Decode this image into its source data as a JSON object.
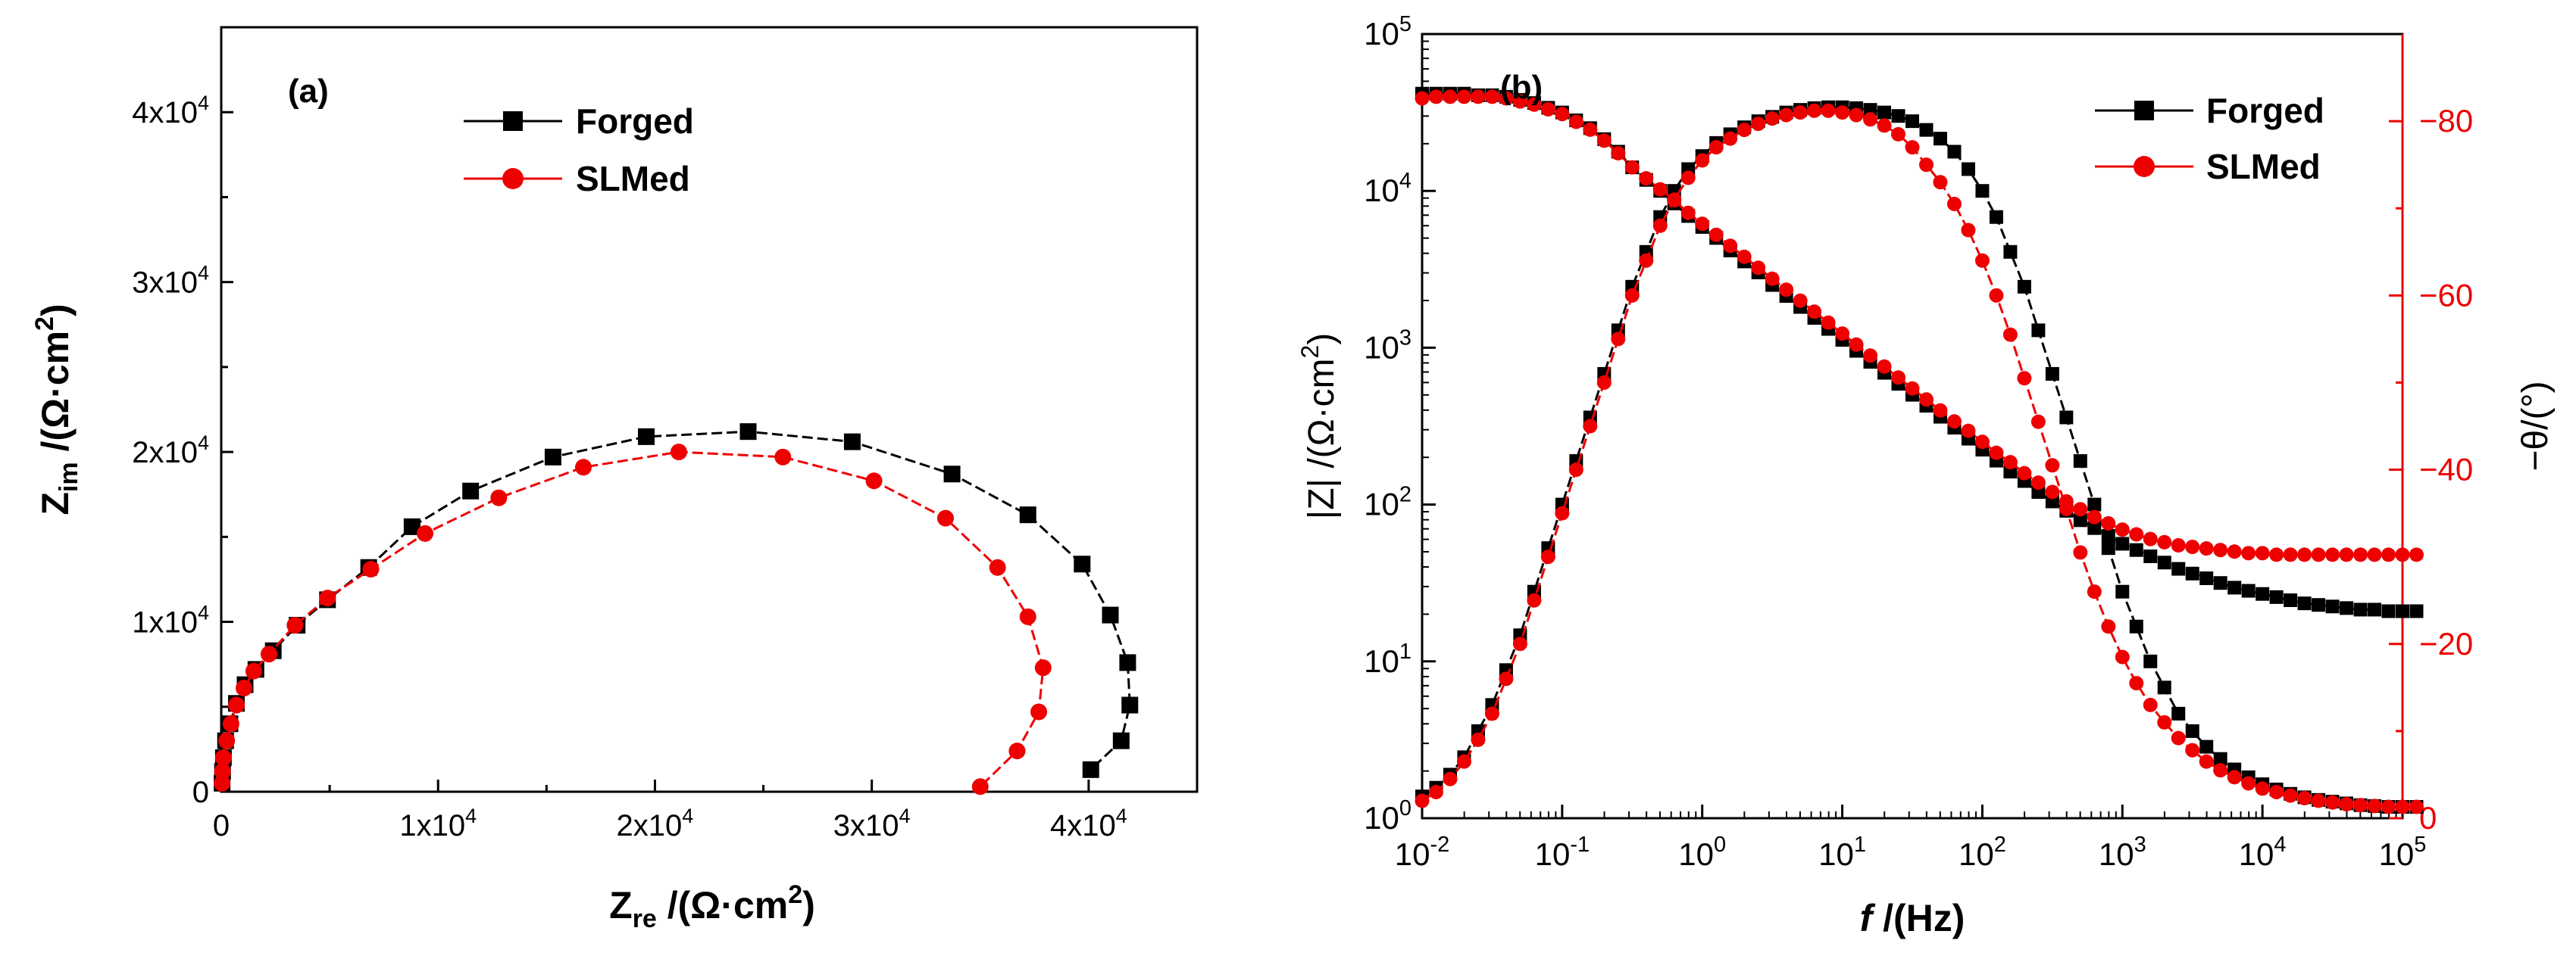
{
  "chart_data": [
    {
      "type": "scatter",
      "panel_label": "(a)",
      "title": "",
      "xlabel": {
        "main": "Z",
        "sub": "re",
        "unit": " /(Ω·cm",
        "sup": "2",
        "close": ")"
      },
      "ylabel": {
        "main": "Z",
        "sub": "im",
        "unit": " /(Ω·cm",
        "sup": "2",
        "close": ")"
      },
      "xlim": [
        0,
        45000
      ],
      "ylim": [
        0,
        45000
      ],
      "x_ticks": [
        {
          "value": 0,
          "label": "0"
        },
        {
          "value": 10000,
          "base": "1x10",
          "exp": "4"
        },
        {
          "value": 20000,
          "base": "2x10",
          "exp": "4"
        },
        {
          "value": 30000,
          "base": "3x10",
          "exp": "4"
        },
        {
          "value": 40000,
          "base": "4x10",
          "exp": "4"
        }
      ],
      "y_ticks": [
        {
          "value": 0,
          "label": "0"
        },
        {
          "value": 10000,
          "base": "1x10",
          "exp": "4"
        },
        {
          "value": 20000,
          "base": "2x10",
          "exp": "4"
        },
        {
          "value": 30000,
          "base": "3x10",
          "exp": "4"
        },
        {
          "value": 40000,
          "base": "4x10",
          "exp": "4"
        }
      ],
      "legend": {
        "position": "top-center",
        "entries": [
          "Forged",
          "SLMed"
        ]
      },
      "series": [
        {
          "name": "Forged",
          "color": "#000000",
          "marker": "square",
          "points": [
            [
              40,
              500
            ],
            [
              60,
              1200
            ],
            [
              100,
              2000
            ],
            [
              200,
              3000
            ],
            [
              400,
              4000
            ],
            [
              700,
              5200
            ],
            [
              1100,
              6300
            ],
            [
              1600,
              7200
            ],
            [
              2400,
              8300
            ],
            [
              3500,
              9800
            ],
            [
              4900,
              11300
            ],
            [
              6800,
              13200
            ],
            [
              8800,
              15600
            ],
            [
              11500,
              17700
            ],
            [
              15300,
              19700
            ],
            [
              19600,
              20900
            ],
            [
              24300,
              21200
            ],
            [
              29100,
              20600
            ],
            [
              33700,
              18700
            ],
            [
              37200,
              16300
            ],
            [
              39700,
              13400
            ],
            [
              41000,
              10400
            ],
            [
              41800,
              7600
            ],
            [
              41900,
              5100
            ],
            [
              41500,
              3000
            ],
            [
              40100,
              1300
            ]
          ]
        },
        {
          "name": "SLMed",
          "color": "#ee0000",
          "marker": "circle",
          "points": [
            [
              40,
              500
            ],
            [
              60,
              1200
            ],
            [
              100,
              2000
            ],
            [
              250,
              3000
            ],
            [
              450,
              4000
            ],
            [
              700,
              5100
            ],
            [
              1050,
              6100
            ],
            [
              1500,
              7100
            ],
            [
              2200,
              8100
            ],
            [
              3400,
              9800
            ],
            [
              4900,
              11400
            ],
            [
              6900,
              13100
            ],
            [
              9400,
              15200
            ],
            [
              12800,
              17300
            ],
            [
              16700,
              19100
            ],
            [
              21100,
              20000
            ],
            [
              25900,
              19700
            ],
            [
              30100,
              18300
            ],
            [
              33400,
              16100
            ],
            [
              35800,
              13200
            ],
            [
              37200,
              10300
            ],
            [
              37900,
              7300
            ],
            [
              37700,
              4700
            ],
            [
              36700,
              2400
            ],
            [
              35000,
              300
            ]
          ]
        }
      ]
    },
    {
      "type": "line",
      "panel_label": "(b)",
      "title": "",
      "xlabel": {
        "italic": "f",
        "rest": " /(Hz)"
      },
      "ylabel": {
        "main": "|Z| /(Ω·cm",
        "sup": "2",
        "close": ")"
      },
      "y2label": "−θ/(°)",
      "xscale": "log",
      "yscale": "log",
      "xlim_log10": [
        -2,
        5
      ],
      "ylim_log10": [
        0,
        5
      ],
      "y2lim": [
        0,
        -90
      ],
      "x_ticks": [
        {
          "exp": -2,
          "base": "10",
          "sup": "-2"
        },
        {
          "exp": -1,
          "base": "10",
          "sup": "-1"
        },
        {
          "exp": 0,
          "base": "10",
          "sup": "0"
        },
        {
          "exp": 1,
          "base": "10",
          "sup": "1"
        },
        {
          "exp": 2,
          "base": "10",
          "sup": "2"
        },
        {
          "exp": 3,
          "base": "10",
          "sup": "3"
        },
        {
          "exp": 4,
          "base": "10",
          "sup": "4"
        },
        {
          "exp": 5,
          "base": "10",
          "sup": "5"
        }
      ],
      "y_ticks": [
        {
          "exp": 0,
          "base": "10",
          "sup": "0"
        },
        {
          "exp": 1,
          "base": "10",
          "sup": "1"
        },
        {
          "exp": 2,
          "base": "10",
          "sup": "2"
        },
        {
          "exp": 3,
          "base": "10",
          "sup": "3"
        },
        {
          "exp": 4,
          "base": "10",
          "sup": "4"
        },
        {
          "exp": 5,
          "base": "10",
          "sup": "5"
        }
      ],
      "y2_ticks": [
        {
          "value": 0,
          "label": "0"
        },
        {
          "value": -20,
          "label": "−20"
        },
        {
          "value": -40,
          "label": "−40"
        },
        {
          "value": -60,
          "label": "−60"
        },
        {
          "value": -80,
          "label": "−80"
        }
      ],
      "legend": {
        "position": "top-right",
        "entries": [
          "Forged",
          "SLMed"
        ]
      },
      "log_freq_start": -2,
      "log_freq_step": 0.1,
      "series": [
        {
          "name": "Forged",
          "color": "#000000",
          "marker": "square",
          "modulus": {
            "axis": "left",
            "log10_values": [
              4.62,
              4.62,
              4.62,
              4.62,
              4.61,
              4.61,
              4.6,
              4.58,
              4.56,
              4.53,
              4.5,
              4.45,
              4.4,
              4.33,
              4.25,
              4.15,
              4.07,
              4.0,
              3.92,
              3.84,
              3.77,
              3.7,
              3.62,
              3.55,
              3.48,
              3.4,
              3.33,
              3.26,
              3.19,
              3.12,
              3.05,
              2.98,
              2.91,
              2.84,
              2.77,
              2.7,
              2.63,
              2.56,
              2.49,
              2.42,
              2.35,
              2.28,
              2.21,
              2.15,
              2.08,
              2.02,
              1.96,
              1.9,
              1.85,
              1.8,
              1.75,
              1.71,
              1.67,
              1.63,
              1.59,
              1.56,
              1.53,
              1.5,
              1.47,
              1.45,
              1.43,
              1.41,
              1.39,
              1.37,
              1.36,
              1.35,
              1.34,
              1.33,
              1.33,
              1.32,
              1.32,
              1.32
            ]
          },
          "phase": {
            "axis": "right",
            "values": [
              -2.5,
              -3.5,
              -5,
              -7,
              -10,
              -13,
              -17,
              -21,
              -26,
              -31,
              -36,
              -41,
              -46,
              -51,
              -56,
              -61,
              -65,
              -69,
              -72,
              -74.5,
              -76,
              -77.5,
              -78.5,
              -79.3,
              -80,
              -80.5,
              -81,
              -81.3,
              -81.5,
              -81.6,
              -81.6,
              -81.5,
              -81.3,
              -81,
              -80.6,
              -80,
              -79,
              -78,
              -76.5,
              -74.5,
              -72,
              -69,
              -65,
              -61,
              -56,
              -51,
              -46,
              -41,
              -36,
              -31,
              -26,
              -22,
              -18,
              -15,
              -12,
              -10,
              -8.2,
              -6.8,
              -5.6,
              -4.7,
              -3.9,
              -3.3,
              -2.8,
              -2.4,
              -2.1,
              -1.9,
              -1.7,
              -1.5,
              -1.4,
              -1.3,
              -1.3,
              -1.3
            ]
          }
        },
        {
          "name": "SLMed",
          "color": "#ee0000",
          "marker": "circle",
          "modulus": {
            "axis": "left",
            "log10_values": [
              4.59,
              4.6,
              4.6,
              4.6,
              4.6,
              4.6,
              4.59,
              4.57,
              4.55,
              4.52,
              4.49,
              4.44,
              4.39,
              4.32,
              4.24,
              4.15,
              4.08,
              4.01,
              3.94,
              3.86,
              3.79,
              3.72,
              3.65,
              3.58,
              3.51,
              3.44,
              3.37,
              3.3,
              3.23,
              3.16,
              3.09,
              3.02,
              2.95,
              2.88,
              2.81,
              2.74,
              2.67,
              2.6,
              2.53,
              2.47,
              2.4,
              2.33,
              2.27,
              2.2,
              2.14,
              2.08,
              2.02,
              1.97,
              1.92,
              1.88,
              1.84,
              1.81,
              1.78,
              1.76,
              1.74,
              1.73,
              1.72,
              1.71,
              1.7,
              1.69,
              1.69,
              1.68,
              1.68,
              1.68,
              1.68,
              1.68,
              1.68,
              1.68,
              1.68,
              1.68,
              1.68,
              1.68
            ]
          },
          "phase": {
            "axis": "right",
            "values": [
              -2,
              -3,
              -4.5,
              -6.5,
              -9,
              -12,
              -16,
              -20,
              -25,
              -30,
              -35,
              -40,
              -45,
              -50,
              -55,
              -60,
              -64,
              -68,
              -71,
              -73.5,
              -75.5,
              -77,
              -78,
              -79,
              -79.7,
              -80.3,
              -80.7,
              -81,
              -81.2,
              -81.2,
              -81,
              -80.7,
              -80.2,
              -79.5,
              -78.5,
              -77,
              -75,
              -73,
              -70.5,
              -67.5,
              -64,
              -60,
              -55.5,
              -50.5,
              -45.5,
              -40.5,
              -35.5,
              -30.5,
              -26,
              -22,
              -18.5,
              -15.5,
              -13,
              -11,
              -9.2,
              -7.8,
              -6.5,
              -5.5,
              -4.7,
              -4.0,
              -3.4,
              -3.0,
              -2.6,
              -2.3,
              -2.0,
              -1.8,
              -1.6,
              -1.5,
              -1.4,
              -1.3,
              -1.3,
              -1.3
            ]
          }
        }
      ]
    }
  ]
}
